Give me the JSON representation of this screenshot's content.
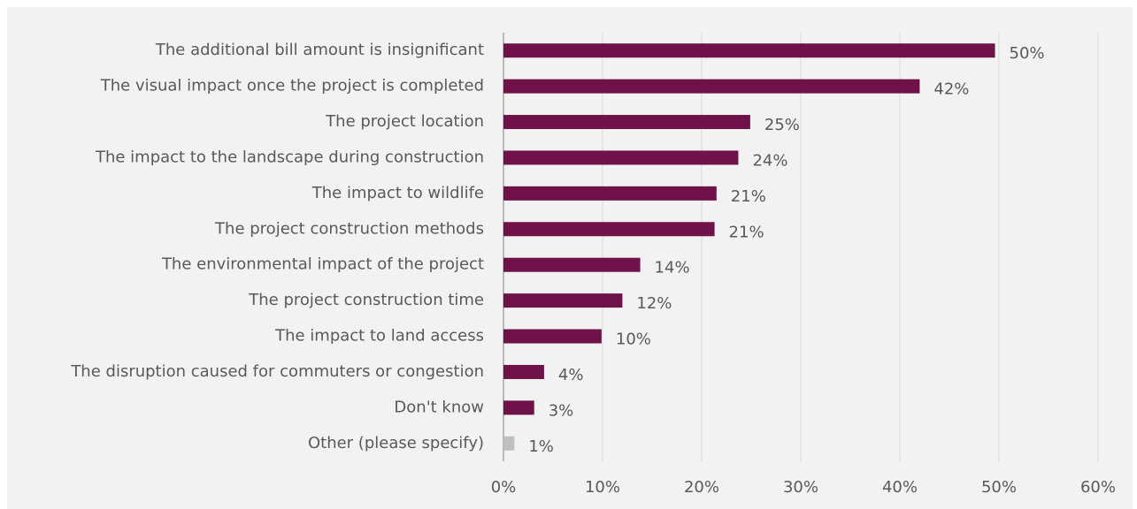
{
  "chart_data": {
    "type": "bar",
    "orientation": "horizontal",
    "categories": [
      "The additional bill amount is insignificant",
      "The visual impact once the project is completed",
      "The project location",
      "The impact to the landscape during construction",
      "The impact to wildlife",
      "The project construction methods",
      "The environmental impact of the project",
      "The project construction time",
      "The impact to land access ",
      "The disruption caused for commuters or congestion ",
      "Don't know",
      "Other (please specify)"
    ],
    "values": [
      49.6,
      42.0,
      24.9,
      23.7,
      21.5,
      21.3,
      13.8,
      12.0,
      9.9,
      4.1,
      3.1,
      1.1
    ],
    "value_labels": [
      "50%",
      "42%",
      "25%",
      "24%",
      "21%",
      "21%",
      "14%",
      "12%",
      "10%",
      "4%",
      "3%",
      "1%"
    ],
    "colors": [
      "#6e1249",
      "#6e1249",
      "#6e1249",
      "#6e1249",
      "#6e1249",
      "#6e1249",
      "#6e1249",
      "#6e1249",
      "#6e1249",
      "#6e1249",
      "#6e1249",
      "#bfbfbf"
    ],
    "xlim": [
      0,
      60
    ],
    "xticks": [
      {
        "value": 0,
        "label": "0%"
      },
      {
        "value": 10,
        "label": "10%"
      },
      {
        "value": 20,
        "label": "20%"
      },
      {
        "value": 30,
        "label": "30%"
      },
      {
        "value": 40,
        "label": "40%"
      },
      {
        "value": 50,
        "label": "50%"
      },
      {
        "value": 60,
        "label": "60%"
      }
    ],
    "grid": true
  }
}
